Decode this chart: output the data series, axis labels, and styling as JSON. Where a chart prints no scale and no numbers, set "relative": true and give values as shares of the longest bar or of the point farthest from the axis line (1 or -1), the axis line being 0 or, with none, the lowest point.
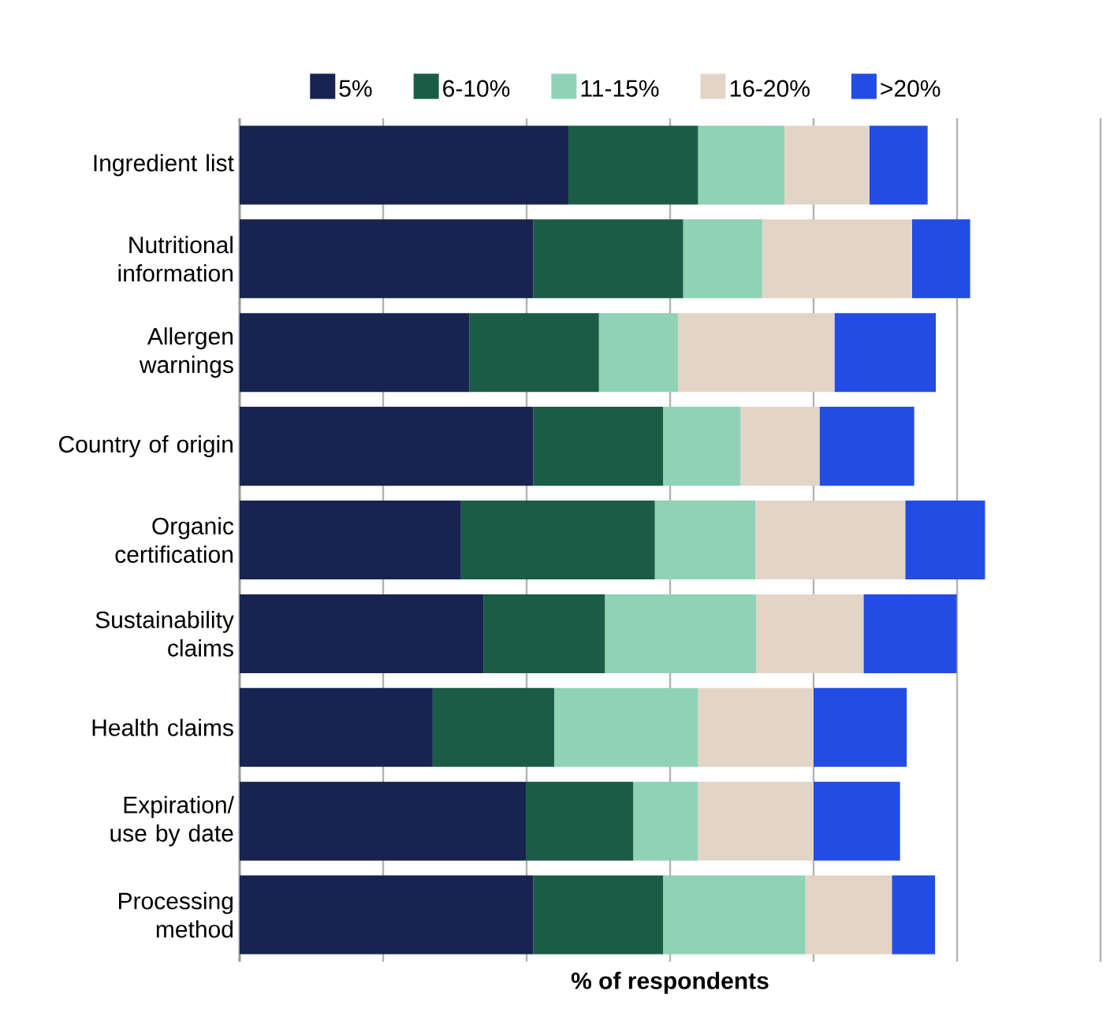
{
  "chart_data": {
    "type": "bar",
    "orientation": "horizontal",
    "stacked": true,
    "relative": true,
    "grid": "x",
    "legend": "top",
    "xlabel": "% of respondents",
    "categories": [
      "Ingredient list",
      "Nutritional information",
      "Allergen warnings",
      "Country of origin",
      "Organic certification",
      "Sustainability claims",
      "Health claims",
      "Expiration/ use by date",
      "Processing method"
    ],
    "series": [
      {
        "name": "5%",
        "color": "#16244f",
        "values": [
          0.441,
          0.394,
          0.308,
          0.394,
          0.297,
          0.327,
          0.259,
          0.384,
          0.394
        ]
      },
      {
        "name": "6-10%",
        "color": "#1b5c47",
        "values": [
          0.174,
          0.201,
          0.174,
          0.174,
          0.26,
          0.163,
          0.163,
          0.144,
          0.174
        ]
      },
      {
        "name": "11-15%",
        "color": "#8fd2b6",
        "values": [
          0.116,
          0.106,
          0.106,
          0.104,
          0.135,
          0.203,
          0.193,
          0.087,
          0.191
        ]
      },
      {
        "name": "16-20%",
        "color": "#e3d5c6",
        "values": [
          0.114,
          0.201,
          0.21,
          0.106,
          0.201,
          0.144,
          0.155,
          0.155,
          0.116
        ]
      },
      {
        "name": ">20%",
        "color": "#224ce3",
        "values": [
          0.078,
          0.078,
          0.136,
          0.127,
          0.107,
          0.125,
          0.125,
          0.116,
          0.058
        ]
      }
    ]
  }
}
